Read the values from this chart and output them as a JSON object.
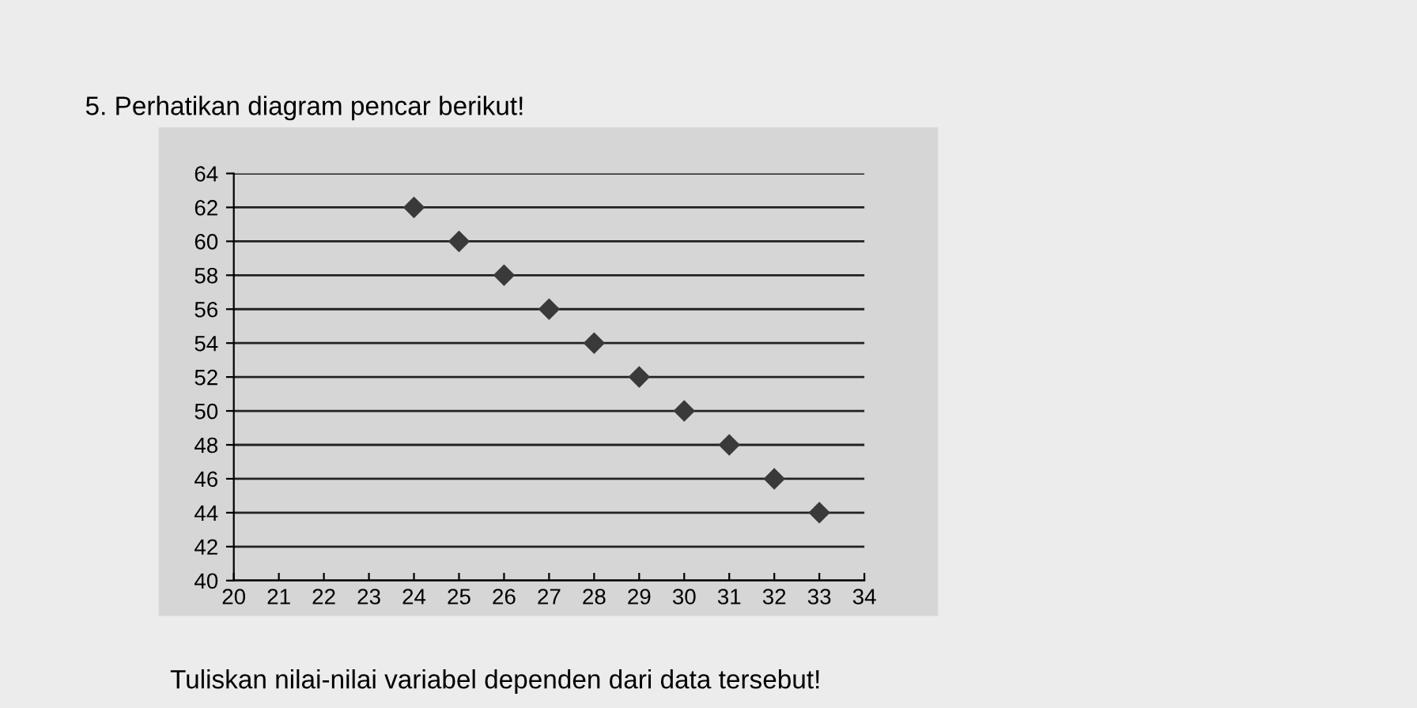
{
  "chart_data": {
    "type": "scatter",
    "title": "5. Perhatikan diagram pencar berikut!",
    "annotations": [
      "Tuliskan nilai-nilai variabel dependen dari data tersebut!"
    ],
    "x": [
      24,
      25,
      26,
      27,
      28,
      29,
      30,
      31,
      32,
      33
    ],
    "series": [
      {
        "color": "#3a3a3a",
        "values": [
          62,
          60,
          58,
          56,
          54,
          52,
          50,
          48,
          46,
          44
        ]
      }
    ],
    "xlim": [
      20,
      34
    ],
    "xticks": [
      20,
      21,
      22,
      23,
      24,
      25,
      26,
      27,
      28,
      29,
      30,
      31,
      32,
      33,
      34
    ],
    "ylim": [
      40,
      64
    ],
    "yticks": [
      40,
      42,
      44,
      46,
      48,
      50,
      52,
      54,
      56,
      58,
      60,
      62,
      64
    ],
    "grid": "y",
    "marker": "diamond",
    "legend": false
  }
}
